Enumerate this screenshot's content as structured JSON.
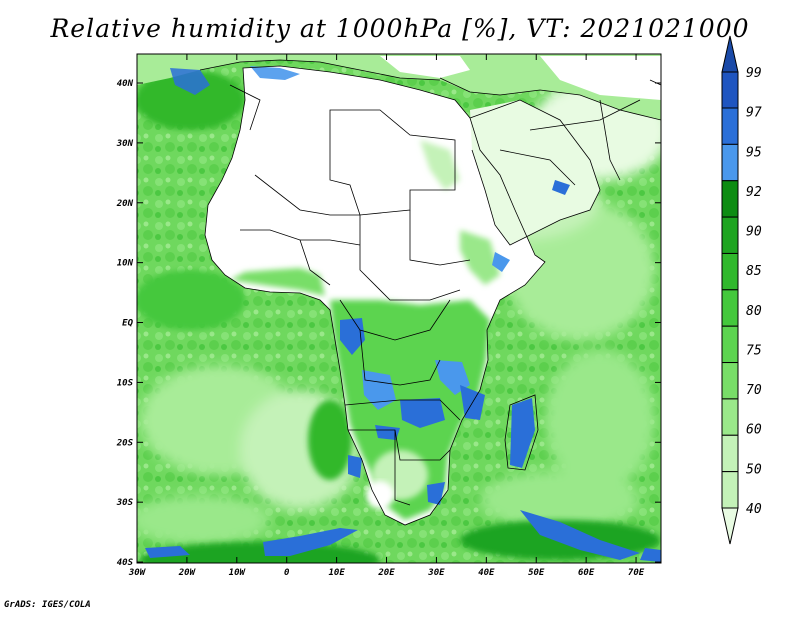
{
  "title": "Relative humidity at 1000hPa [%], VT: 2021021000",
  "footer": "GrADS: IGES/COLA",
  "map": {
    "lon_ticks": [
      "30W",
      "20W",
      "10W",
      "0",
      "10E",
      "20E",
      "30E",
      "40E",
      "50E",
      "60E",
      "70E"
    ],
    "lat_ticks": [
      "40N",
      "30N",
      "20N",
      "10N",
      "EQ",
      "10S",
      "20S",
      "30S",
      "40S"
    ],
    "lon_range": [
      -30,
      75
    ],
    "lat_range": [
      -40,
      45
    ]
  },
  "colorbar": {
    "levels": [
      "40",
      "50",
      "60",
      "70",
      "75",
      "80",
      "85",
      "90",
      "92",
      "95",
      "97",
      "99"
    ],
    "colors": [
      "#e8fbe2",
      "#c4f2b8",
      "#9ae88a",
      "#78de68",
      "#5cd450",
      "#44c83c",
      "#30b82c",
      "#1ea420",
      "#0d8c12",
      "#4a98ec",
      "#2a6fd8",
      "#1f55c0",
      "#1a4aa8"
    ]
  },
  "colors": {
    "dry": "#ffffff",
    "ocean_base": "#78de68",
    "moist": "#1ea420",
    "saturated": "#2a6fd8"
  }
}
